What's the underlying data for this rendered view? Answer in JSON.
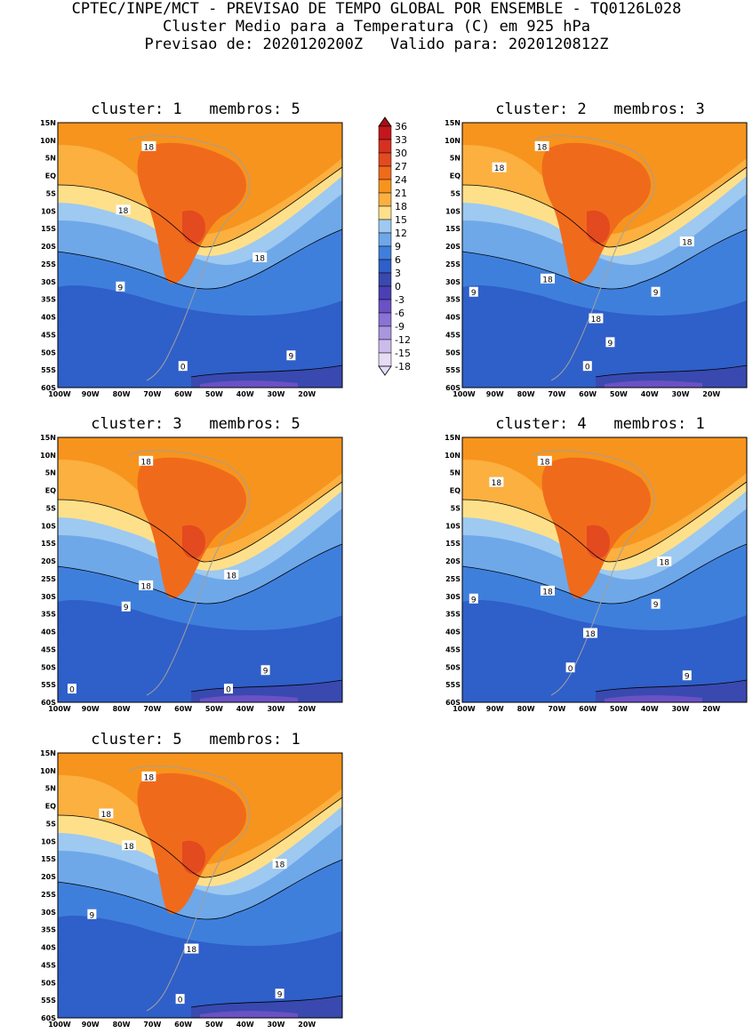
{
  "header": {
    "line1": "CPTEC/INPE/MCT - PREVISAO DE TEMPO GLOBAL POR ENSEMBLE - TQ0126L028",
    "line2": "Cluster Medio para a Temperatura (C) em 925 hPa",
    "line3": "Previsao de: 2020120200Z   Valido para: 2020120812Z"
  },
  "axes": {
    "lat_labels": [
      "15N",
      "10N",
      "5N",
      "EQ",
      "5S",
      "10S",
      "15S",
      "20S",
      "25S",
      "30S",
      "35S",
      "40S",
      "45S",
      "50S",
      "55S",
      "60S"
    ],
    "lon_labels": [
      "100W",
      "90W",
      "80W",
      "70W",
      "60W",
      "50W",
      "40W",
      "30W",
      "20W"
    ]
  },
  "legend": {
    "values": [
      "36",
      "33",
      "30",
      "27",
      "24",
      "21",
      "18",
      "15",
      "12",
      "9",
      "6",
      "3",
      "0",
      "-3",
      "-6",
      "-9",
      "-12",
      "-15",
      "-18"
    ],
    "colors": [
      "#a50f15",
      "#c4161c",
      "#d7301f",
      "#e34a1f",
      "#f06a1c",
      "#f7941d",
      "#fbb040",
      "#fee08b",
      "#9ec9f0",
      "#6ea8e8",
      "#3f7fdc",
      "#2f5fc8",
      "#3949b0",
      "#4b3fb5",
      "#6a51c4",
      "#8a73d4",
      "#a996e0",
      "#cbbcec",
      "#e6dcf6"
    ]
  },
  "panels": [
    {
      "title": "cluster: 1   membros: 5",
      "labels": [
        {
          "t": "18"
        },
        {
          "t": "18"
        },
        {
          "t": "18"
        },
        {
          "t": "9"
        },
        {
          "t": "0"
        },
        {
          "t": "9"
        }
      ]
    },
    {
      "title": "cluster: 2   membros: 3",
      "labels": [
        {
          "t": "18"
        },
        {
          "t": "18"
        },
        {
          "t": "18"
        },
        {
          "t": "18"
        },
        {
          "t": "18"
        },
        {
          "t": "9"
        },
        {
          "t": "9"
        },
        {
          "t": "9"
        },
        {
          "t": "0"
        }
      ]
    },
    {
      "title": "cluster: 3   membros: 5",
      "labels": [
        {
          "t": "18"
        },
        {
          "t": "18"
        },
        {
          "t": "18"
        },
        {
          "t": "9"
        },
        {
          "t": "0"
        },
        {
          "t": "0"
        },
        {
          "t": "9"
        }
      ]
    },
    {
      "title": "cluster: 4   membros: 1",
      "labels": [
        {
          "t": "18"
        },
        {
          "t": "18"
        },
        {
          "t": "18"
        },
        {
          "t": "18"
        },
        {
          "t": "9"
        },
        {
          "t": "9"
        },
        {
          "t": "18"
        },
        {
          "t": "0"
        },
        {
          "t": "9"
        }
      ]
    },
    {
      "title": "cluster: 5   membros: 1",
      "labels": [
        {
          "t": "18"
        },
        {
          "t": "18"
        },
        {
          "t": "18"
        },
        {
          "t": "18"
        },
        {
          "t": "9"
        },
        {
          "t": "18"
        },
        {
          "t": "0"
        },
        {
          "t": "9"
        }
      ]
    }
  ]
}
